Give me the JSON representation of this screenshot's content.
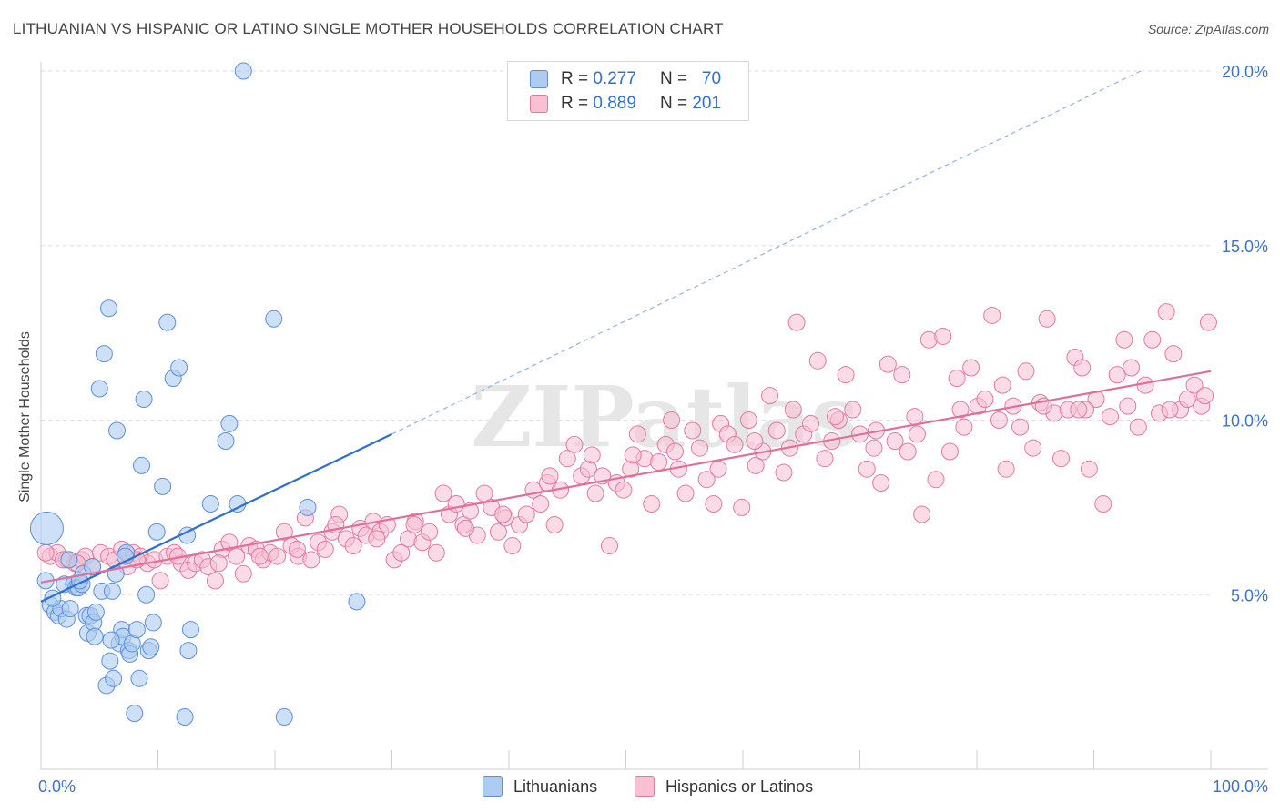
{
  "title": "LITHUANIAN VS HISPANIC OR LATINO SINGLE MOTHER HOUSEHOLDS CORRELATION CHART",
  "source": "Source: ZipAtlas.com",
  "watermark": "ZIPatlas",
  "legend": {
    "rows": [
      {
        "r_label": "R =",
        "r_value": "0.277",
        "n_label": "N =",
        "n_value": "70",
        "color": "#aecbf2",
        "border": "#5b8fd8"
      },
      {
        "r_label": "R =",
        "r_value": "0.889",
        "n_label": "N =",
        "n_value": "201",
        "color": "#f8c0d2",
        "border": "#e07aa0"
      }
    ]
  },
  "bottom_legend": [
    {
      "label": "Lithuanians",
      "color": "#aecbf2",
      "border": "#5b8fd8"
    },
    {
      "label": "Hispanics or Latinos",
      "color": "#f8c0d2",
      "border": "#e07aa0"
    }
  ],
  "chart_data": {
    "type": "scatter",
    "title": "LITHUANIAN VS HISPANIC OR LATINO SINGLE MOTHER HOUSEHOLDS CORRELATION CHART",
    "xlabel": "",
    "ylabel": "Single Mother Households",
    "xlim": [
      0,
      100
    ],
    "ylim": [
      0,
      20
    ],
    "x_tick_labels": [
      "0.0%",
      "100.0%"
    ],
    "y_tick_labels": [
      "5.0%",
      "10.0%",
      "15.0%",
      "20.0%"
    ],
    "y_ticks": [
      5,
      10,
      15,
      20
    ],
    "grid": true,
    "legend_position": "top-center",
    "series": [
      {
        "name": "Lithuanians",
        "color": "#5b8fd8",
        "fill": "#aecbf2",
        "trend": {
          "x": [
            0,
            30
          ],
          "y": [
            4.8,
            9.6
          ],
          "dashed_extension_to": [
            94,
            20
          ]
        },
        "points": [
          [
            0.5,
            6.9
          ],
          [
            0.4,
            5.4
          ],
          [
            0.8,
            4.7
          ],
          [
            1.2,
            4.5
          ],
          [
            1.5,
            4.4
          ],
          [
            1.7,
            4.6
          ],
          [
            2.0,
            5.3
          ],
          [
            2.2,
            4.3
          ],
          [
            2.4,
            6.0
          ],
          [
            2.5,
            4.6
          ],
          [
            2.8,
            5.3
          ],
          [
            3.0,
            5.2
          ],
          [
            3.2,
            5.2
          ],
          [
            3.5,
            5.3
          ],
          [
            3.6,
            5.6
          ],
          [
            3.9,
            4.4
          ],
          [
            4.0,
            3.9
          ],
          [
            4.2,
            4.4
          ],
          [
            4.4,
            5.8
          ],
          [
            4.5,
            4.2
          ],
          [
            4.6,
            3.8
          ],
          [
            4.7,
            4.5
          ],
          [
            5.0,
            10.9
          ],
          [
            5.2,
            5.1
          ],
          [
            5.4,
            11.9
          ],
          [
            5.6,
            2.4
          ],
          [
            5.8,
            13.2
          ],
          [
            5.9,
            3.1
          ],
          [
            6.1,
            5.1
          ],
          [
            6.2,
            2.6
          ],
          [
            6.4,
            5.6
          ],
          [
            6.5,
            9.7
          ],
          [
            6.7,
            3.6
          ],
          [
            6.9,
            4.0
          ],
          [
            7.0,
            3.8
          ],
          [
            7.3,
            6.2
          ],
          [
            7.5,
            3.4
          ],
          [
            7.6,
            3.3
          ],
          [
            7.8,
            3.6
          ],
          [
            8.0,
            1.6
          ],
          [
            8.2,
            4.0
          ],
          [
            8.4,
            2.6
          ],
          [
            8.6,
            8.7
          ],
          [
            8.8,
            10.6
          ],
          [
            9.0,
            5.0
          ],
          [
            9.2,
            3.4
          ],
          [
            9.4,
            3.5
          ],
          [
            9.6,
            4.2
          ],
          [
            9.9,
            6.8
          ],
          [
            10.4,
            8.1
          ],
          [
            10.8,
            12.8
          ],
          [
            11.3,
            11.2
          ],
          [
            11.8,
            11.5
          ],
          [
            12.3,
            1.5
          ],
          [
            12.5,
            6.7
          ],
          [
            12.8,
            4.0
          ],
          [
            14.5,
            7.6
          ],
          [
            15.8,
            9.4
          ],
          [
            16.1,
            9.9
          ],
          [
            16.8,
            7.6
          ],
          [
            17.3,
            20.0
          ],
          [
            19.9,
            12.9
          ],
          [
            20.8,
            1.5
          ],
          [
            22.8,
            7.5
          ],
          [
            27.0,
            4.8
          ],
          [
            12.6,
            3.4
          ],
          [
            7.2,
            6.1
          ],
          [
            6.0,
            3.7
          ],
          [
            3.3,
            5.4
          ],
          [
            1.0,
            4.9
          ]
        ]
      },
      {
        "name": "Hispanics or Latinos",
        "color": "#e07aa0",
        "fill": "#f8c0d2",
        "trend": {
          "x": [
            0,
            100
          ],
          "y": [
            5.35,
            11.4
          ]
        },
        "points": [
          [
            0.8,
            6.1
          ],
          [
            1.4,
            6.2
          ],
          [
            2.2,
            6.0
          ],
          [
            2.9,
            5.9
          ],
          [
            3.5,
            6.0
          ],
          [
            3.8,
            6.1
          ],
          [
            4.4,
            5.8
          ],
          [
            5.1,
            6.2
          ],
          [
            5.8,
            6.1
          ],
          [
            6.3,
            6.0
          ],
          [
            6.9,
            6.3
          ],
          [
            7.4,
            5.8
          ],
          [
            7.9,
            6.2
          ],
          [
            8.5,
            6.1
          ],
          [
            9.1,
            5.9
          ],
          [
            9.7,
            6.0
          ],
          [
            10.2,
            5.4
          ],
          [
            10.8,
            6.1
          ],
          [
            11.4,
            6.2
          ],
          [
            12.0,
            5.9
          ],
          [
            12.6,
            5.7
          ],
          [
            13.2,
            5.9
          ],
          [
            13.8,
            6.0
          ],
          [
            14.3,
            5.8
          ],
          [
            14.9,
            5.4
          ],
          [
            15.5,
            6.3
          ],
          [
            16.1,
            6.5
          ],
          [
            16.7,
            6.1
          ],
          [
            17.3,
            5.6
          ],
          [
            17.8,
            6.4
          ],
          [
            18.4,
            6.3
          ],
          [
            19.0,
            6.0
          ],
          [
            19.6,
            6.2
          ],
          [
            20.2,
            6.1
          ],
          [
            20.8,
            6.8
          ],
          [
            21.4,
            6.4
          ],
          [
            22.0,
            6.1
          ],
          [
            22.6,
            7.2
          ],
          [
            23.1,
            6.0
          ],
          [
            23.7,
            6.5
          ],
          [
            24.3,
            6.3
          ],
          [
            24.9,
            6.8
          ],
          [
            25.5,
            7.3
          ],
          [
            26.1,
            6.6
          ],
          [
            26.7,
            6.4
          ],
          [
            27.3,
            6.9
          ],
          [
            27.8,
            6.7
          ],
          [
            28.4,
            7.1
          ],
          [
            29.0,
            6.8
          ],
          [
            29.6,
            7.0
          ],
          [
            30.2,
            6.0
          ],
          [
            30.8,
            6.2
          ],
          [
            31.4,
            6.6
          ],
          [
            32.0,
            7.1
          ],
          [
            32.6,
            6.5
          ],
          [
            33.2,
            6.8
          ],
          [
            33.8,
            6.2
          ],
          [
            34.4,
            7.9
          ],
          [
            34.9,
            7.3
          ],
          [
            35.5,
            7.6
          ],
          [
            36.1,
            7.0
          ],
          [
            36.7,
            7.4
          ],
          [
            37.3,
            6.7
          ],
          [
            37.9,
            7.9
          ],
          [
            38.5,
            7.5
          ],
          [
            39.1,
            6.8
          ],
          [
            39.7,
            7.2
          ],
          [
            40.3,
            6.4
          ],
          [
            40.9,
            7.0
          ],
          [
            41.5,
            7.3
          ],
          [
            42.1,
            8.0
          ],
          [
            42.7,
            7.6
          ],
          [
            43.3,
            8.2
          ],
          [
            43.9,
            7.0
          ],
          [
            44.4,
            8.0
          ],
          [
            45.0,
            8.9
          ],
          [
            45.6,
            9.3
          ],
          [
            46.2,
            8.4
          ],
          [
            46.8,
            8.6
          ],
          [
            47.4,
            7.9
          ],
          [
            48.0,
            8.4
          ],
          [
            48.6,
            6.4
          ],
          [
            49.2,
            8.2
          ],
          [
            49.8,
            8.0
          ],
          [
            50.4,
            8.6
          ],
          [
            51.0,
            9.6
          ],
          [
            51.6,
            8.9
          ],
          [
            52.2,
            7.6
          ],
          [
            52.8,
            8.8
          ],
          [
            53.4,
            9.3
          ],
          [
            53.9,
            10.0
          ],
          [
            54.5,
            8.6
          ],
          [
            55.1,
            7.9
          ],
          [
            55.7,
            9.7
          ],
          [
            56.3,
            9.2
          ],
          [
            56.9,
            8.3
          ],
          [
            57.5,
            7.6
          ],
          [
            58.1,
            9.9
          ],
          [
            58.7,
            9.6
          ],
          [
            59.3,
            9.3
          ],
          [
            59.9,
            7.5
          ],
          [
            60.5,
            10.0
          ],
          [
            61.1,
            8.7
          ],
          [
            61.7,
            9.1
          ],
          [
            62.3,
            10.7
          ],
          [
            62.9,
            9.7
          ],
          [
            63.5,
            8.5
          ],
          [
            64.0,
            9.2
          ],
          [
            64.6,
            12.8
          ],
          [
            65.2,
            9.6
          ],
          [
            65.8,
            9.9
          ],
          [
            66.4,
            11.7
          ],
          [
            67.0,
            8.9
          ],
          [
            67.6,
            9.4
          ],
          [
            68.2,
            10.0
          ],
          [
            68.8,
            11.3
          ],
          [
            69.4,
            10.3
          ],
          [
            70.0,
            9.6
          ],
          [
            70.6,
            8.6
          ],
          [
            71.2,
            9.2
          ],
          [
            71.8,
            8.2
          ],
          [
            72.4,
            11.6
          ],
          [
            73.0,
            9.4
          ],
          [
            73.6,
            11.3
          ],
          [
            74.1,
            9.1
          ],
          [
            74.7,
            10.1
          ],
          [
            75.3,
            7.3
          ],
          [
            75.9,
            12.3
          ],
          [
            76.5,
            8.3
          ],
          [
            77.1,
            12.4
          ],
          [
            77.7,
            9.1
          ],
          [
            78.3,
            11.2
          ],
          [
            78.9,
            9.8
          ],
          [
            79.5,
            11.5
          ],
          [
            80.1,
            10.4
          ],
          [
            80.7,
            10.6
          ],
          [
            81.3,
            13.0
          ],
          [
            81.9,
            10.0
          ],
          [
            82.5,
            8.6
          ],
          [
            83.1,
            10.4
          ],
          [
            83.7,
            9.8
          ],
          [
            84.2,
            11.4
          ],
          [
            84.8,
            9.2
          ],
          [
            85.4,
            10.5
          ],
          [
            86.0,
            12.9
          ],
          [
            86.6,
            10.2
          ],
          [
            87.2,
            8.9
          ],
          [
            87.8,
            10.3
          ],
          [
            88.4,
            11.8
          ],
          [
            89.0,
            11.5
          ],
          [
            89.6,
            8.6
          ],
          [
            90.2,
            10.6
          ],
          [
            90.8,
            7.6
          ],
          [
            91.4,
            10.1
          ],
          [
            92.0,
            11.3
          ],
          [
            92.6,
            12.3
          ],
          [
            93.2,
            11.5
          ],
          [
            93.8,
            9.8
          ],
          [
            94.4,
            11.0
          ],
          [
            95.0,
            12.3
          ],
          [
            95.6,
            10.2
          ],
          [
            96.2,
            13.1
          ],
          [
            96.8,
            11.9
          ],
          [
            97.4,
            10.3
          ],
          [
            98.0,
            10.6
          ],
          [
            98.6,
            11.0
          ],
          [
            99.2,
            10.4
          ],
          [
            99.8,
            12.8
          ],
          [
            0.4,
            6.2
          ],
          [
            1.9,
            6.0
          ],
          [
            3.1,
            5.9
          ],
          [
            8.2,
            6.0
          ],
          [
            11.7,
            6.1
          ],
          [
            15.2,
            5.9
          ],
          [
            18.7,
            6.1
          ],
          [
            21.9,
            6.3
          ],
          [
            25.2,
            7.0
          ],
          [
            28.7,
            6.6
          ],
          [
            31.9,
            7.0
          ],
          [
            36.3,
            6.9
          ],
          [
            39.5,
            7.3
          ],
          [
            43.5,
            8.4
          ],
          [
            47.1,
            9.0
          ],
          [
            50.6,
            9.0
          ],
          [
            54.2,
            9.1
          ],
          [
            57.9,
            8.6
          ],
          [
            61.0,
            9.4
          ],
          [
            64.3,
            10.3
          ],
          [
            67.9,
            10.1
          ],
          [
            71.4,
            9.7
          ],
          [
            74.9,
            9.6
          ],
          [
            78.6,
            10.3
          ],
          [
            82.2,
            11.0
          ],
          [
            85.7,
            10.4
          ],
          [
            89.3,
            10.3
          ],
          [
            92.9,
            10.4
          ],
          [
            96.5,
            10.3
          ],
          [
            99.5,
            10.7
          ],
          [
            88.7,
            10.3
          ]
        ]
      }
    ]
  }
}
